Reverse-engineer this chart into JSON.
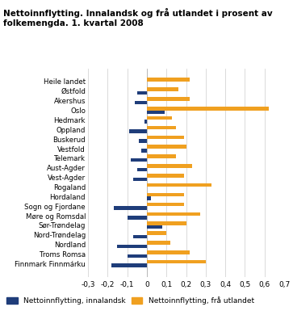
{
  "title": "Nettoinnflytting. Innalandsk og frå utlandet i prosent av\nfolkemengda. 1. kvartal 2008",
  "categories": [
    "Heile landet",
    "Østfold",
    "Akershus",
    "Oslo",
    "Hedmark",
    "Oppland",
    "Buskerud",
    "Vestfold",
    "Telemark",
    "Aust-Agder",
    "Vest-Agder",
    "Rogaland",
    "Hordaland",
    "Sogn og Fjordane",
    "Møre og Romsdal",
    "Sør-Trøndelag",
    "Nord-Trøndelag",
    "Nordland",
    "Troms Romsa",
    "Finnmark Finnmárku"
  ],
  "innalandsk": [
    0.0,
    -0.05,
    -0.06,
    0.09,
    -0.01,
    -0.09,
    -0.04,
    -0.03,
    -0.08,
    -0.05,
    -0.07,
    0.0,
    0.02,
    -0.17,
    -0.1,
    0.08,
    -0.07,
    -0.15,
    -0.1,
    -0.18
  ],
  "fra_utlandet": [
    0.22,
    0.16,
    0.22,
    0.62,
    0.13,
    0.15,
    0.19,
    0.2,
    0.15,
    0.23,
    0.19,
    0.33,
    0.19,
    0.19,
    0.27,
    0.2,
    0.1,
    0.12,
    0.22,
    0.3
  ],
  "color_innalandsk": "#1f3d7a",
  "color_fra_utlandet": "#f0a020",
  "legend_innalandsk": "Nettoinnflytting, innalandsk",
  "legend_fra_utlandet": "Nettoinnflytting, frå utlandet",
  "xlim": [
    -0.3,
    0.7
  ],
  "xticks": [
    -0.3,
    -0.2,
    -0.1,
    0.0,
    0.1,
    0.2,
    0.3,
    0.4,
    0.5,
    0.6,
    0.7
  ],
  "xtick_labels": [
    "-0,3",
    "-0,2",
    "-0,1",
    "0",
    "0,1",
    "0,2",
    "0,3",
    "0,4",
    "0,5",
    "0,6",
    "0,7"
  ],
  "background_color": "#ffffff",
  "grid_color": "#cccccc"
}
